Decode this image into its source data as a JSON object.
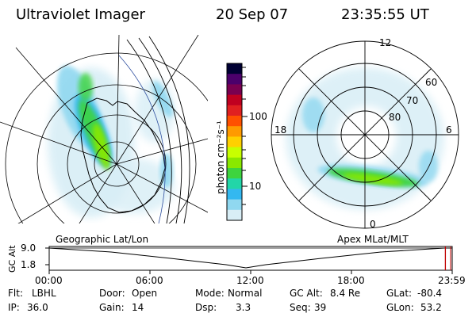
{
  "header": {
    "instrument": "Ultraviolet Imager",
    "date": "20 Sep 07",
    "time": "23:35:55 UT"
  },
  "colorbar": {
    "unit_label": "photon cm⁻²s⁻¹",
    "scale": "log",
    "tick_labels": [
      "100",
      "10"
    ],
    "colors": [
      "#000033",
      "#4b006b",
      "#7a0050",
      "#c00020",
      "#e02020",
      "#ff5000",
      "#ff9a00",
      "#ffd000",
      "#c8ff00",
      "#8ae800",
      "#3ed43e",
      "#22d6a8",
      "#33b8f0",
      "#90d8f0",
      "#d8eef6"
    ]
  },
  "geo_panel": {
    "caption": "Geographic Lat/Lon"
  },
  "apex_panel": {
    "caption": "Apex MLat/MLT",
    "mlt_labels": {
      "top": "12",
      "left": "18",
      "right": "6",
      "bottom": "0"
    },
    "mlat_labels": [
      "60",
      "70",
      "80"
    ]
  },
  "timeline": {
    "ylabel": "GC Alt",
    "y_ticks": [
      "9.0",
      "1.8"
    ],
    "x_ticks": [
      "00:00",
      "06:00",
      "12:00",
      "18:00",
      "23:59"
    ],
    "current_marker_fraction": 0.983
  },
  "status": {
    "row1": [
      {
        "label": "Flt:",
        "value": "LBHL"
      },
      {
        "label": "Door:",
        "value": "Open"
      },
      {
        "label": "Mode:",
        "value": "Normal"
      },
      {
        "label": "GC Alt:",
        "value": "8.4 Re"
      },
      {
        "label": "GLat:",
        "value": "-80.4"
      }
    ],
    "row2": [
      {
        "label": "IP:",
        "value": "36.0"
      },
      {
        "label": "Gain:",
        "value": "14"
      },
      {
        "label": "Dsp:",
        "value": "3.3"
      },
      {
        "label": "Seq:",
        "value": "39"
      },
      {
        "label": "GLon:",
        "value": "53.2"
      }
    ]
  }
}
